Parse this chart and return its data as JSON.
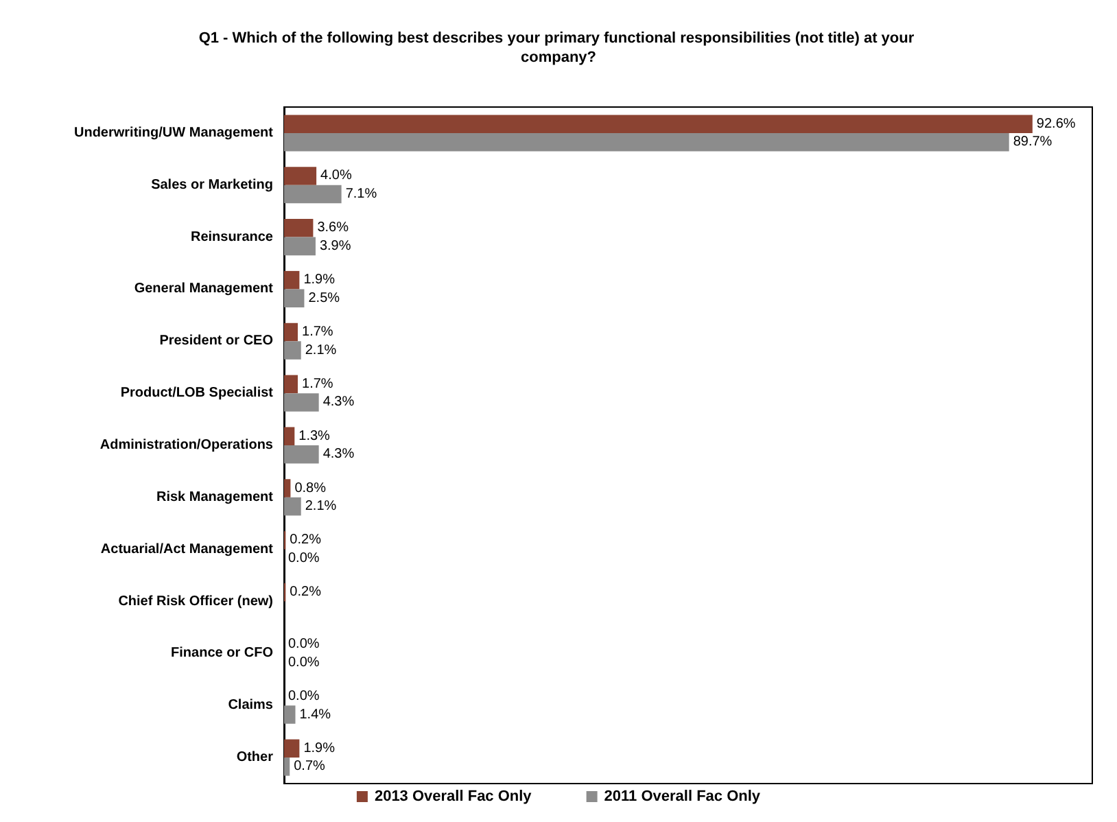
{
  "chart_data": {
    "type": "bar",
    "orientation": "horizontal",
    "title": "Q1 - Which of the following best describes your primary functional responsibilities (not title) at your company?",
    "categories": [
      "Underwriting/UW Management",
      "Sales or Marketing",
      "Reinsurance",
      "General Management",
      "President or CEO",
      "Product/LOB Specialist",
      "Administration/Operations",
      "Risk Management",
      "Actuarial/Act Management",
      "Chief Risk Officer (new)",
      "Finance or CFO",
      "Claims",
      "Other"
    ],
    "series": [
      {
        "name": "2013 Overall Fac Only",
        "color": "#8b4332",
        "values": [
          92.6,
          4.0,
          3.6,
          1.9,
          1.7,
          1.7,
          1.3,
          0.8,
          0.2,
          0.2,
          0.0,
          0.0,
          1.9
        ],
        "value_labels": [
          "92.6%",
          "4.0%",
          "3.6%",
          "1.9%",
          "1.7%",
          "1.7%",
          "1.3%",
          "0.8%",
          "0.2%",
          "0.2%",
          "0.0%",
          "0.0%",
          "1.9%"
        ]
      },
      {
        "name": "2011 Overall Fac Only",
        "color": "#8c8c8c",
        "values": [
          89.7,
          7.1,
          3.9,
          2.5,
          2.1,
          4.3,
          4.3,
          2.1,
          0.0,
          null,
          0.0,
          1.4,
          0.7
        ],
        "value_labels": [
          "89.7%",
          "7.1%",
          "3.9%",
          "2.5%",
          "2.1%",
          "4.3%",
          "4.3%",
          "2.1%",
          "0.0%",
          null,
          "0.0%",
          "1.4%",
          "0.7%"
        ]
      }
    ],
    "legend": "bottom",
    "grid": false
  }
}
